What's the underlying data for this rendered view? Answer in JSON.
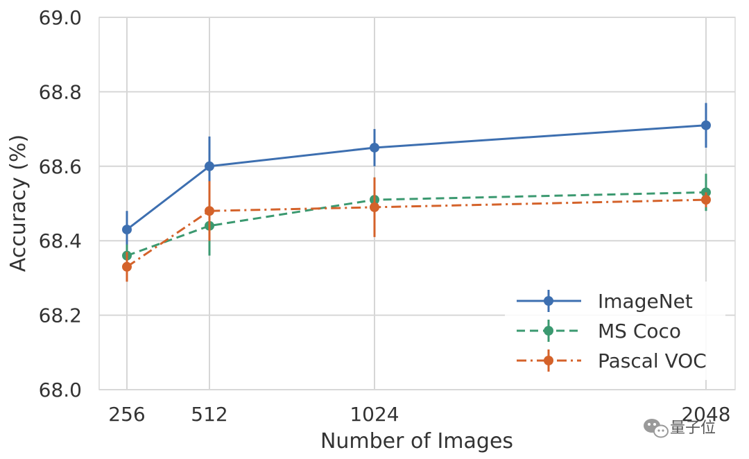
{
  "chart_data": {
    "type": "line",
    "xlabel": "Number of Images",
    "ylabel": "Accuracy (%)",
    "x": [
      256,
      512,
      1024,
      2048
    ],
    "x_tick_labels": [
      "256",
      "512",
      "1024",
      "2048"
    ],
    "ylim": [
      68.0,
      69.0
    ],
    "y_ticks": [
      68.0,
      68.2,
      68.4,
      68.6,
      68.8,
      69.0
    ],
    "y_tick_labels": [
      "68.0",
      "68.2",
      "68.4",
      "68.6",
      "68.8",
      "69.0"
    ],
    "grid": true,
    "legend_position": "bottom-right",
    "series": [
      {
        "name": "ImageNet",
        "color": "#3d6fb0",
        "line_style": "solid",
        "values": [
          68.43,
          68.6,
          68.65,
          68.71
        ],
        "error": [
          0.05,
          0.08,
          0.05,
          0.06
        ]
      },
      {
        "name": "MS Coco",
        "color": "#3b9970",
        "line_style": "dashed",
        "values": [
          68.36,
          68.44,
          68.51,
          68.53
        ],
        "error": [
          0.03,
          0.08,
          0.06,
          0.05
        ]
      },
      {
        "name": "Pascal VOC",
        "color": "#d4622a",
        "line_style": "dashdot",
        "values": [
          68.33,
          68.48,
          68.49,
          68.51
        ],
        "error": [
          0.04,
          0.08,
          0.08,
          0.02
        ]
      }
    ]
  },
  "watermark": {
    "text": "量子位",
    "icon": "wechat-icon"
  }
}
